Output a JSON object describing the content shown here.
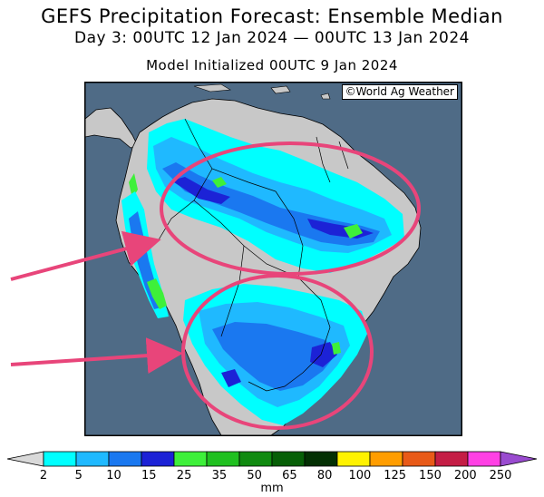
{
  "header": {
    "title": "GEFS Precipitation Forecast: Ensemble Median",
    "subtitle": "Day 3: 00UTC 12 Jan 2024 — 00UTC 13 Jan 2024",
    "model_init": "Model Initialized 00UTC 9 Jan 2024"
  },
  "map": {
    "credit": "©World Ag Weather",
    "ocean_color": "#4f6b86",
    "land_color": "#c8c8c8"
  },
  "annotations": {
    "highlight_color": "#e8457a",
    "items": [
      "upper-ellipse",
      "lower-ellipse",
      "upper-arrow",
      "lower-arrow"
    ]
  },
  "colorbar": {
    "unit": "mm",
    "ticks": [
      "2",
      "5",
      "10",
      "15",
      "25",
      "35",
      "50",
      "65",
      "80",
      "100",
      "125",
      "150",
      "200",
      "250"
    ],
    "colors": [
      "#00ffff",
      "#1fb9ff",
      "#1a78f0",
      "#1c22d6",
      "#3ef03a",
      "#20c020",
      "#108a10",
      "#075f07",
      "#033003",
      "#fff200",
      "#ff9d00",
      "#e85a18",
      "#c41d45",
      "#ff40e4",
      "#9a4bd0"
    ]
  }
}
